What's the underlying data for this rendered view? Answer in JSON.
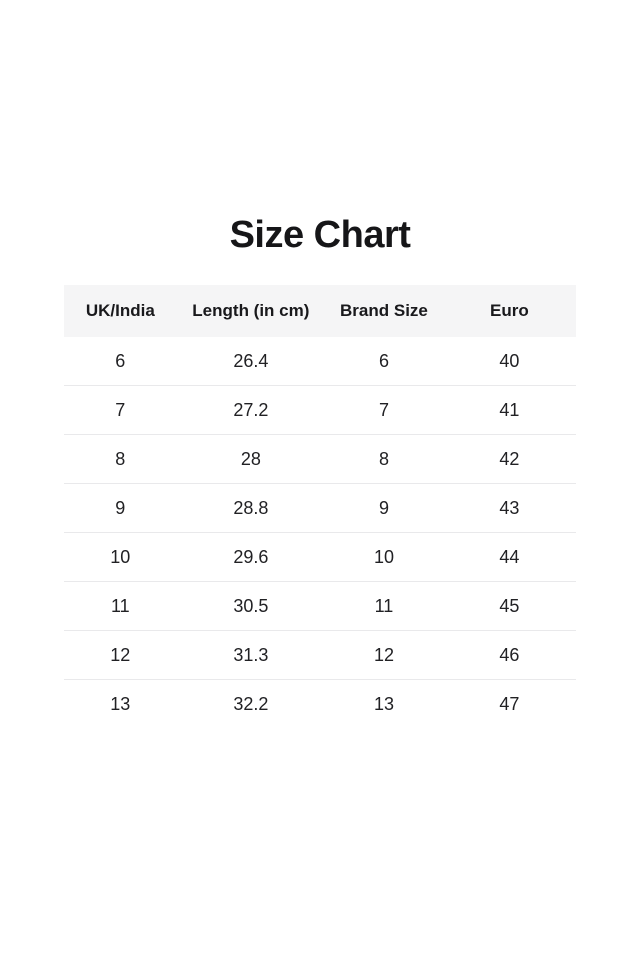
{
  "page": {
    "title": "Size Chart",
    "background": "#ffffff"
  },
  "colors": {
    "header_bg": "#f5f5f6",
    "divider": "#e9e9eb",
    "title_text": "#161618",
    "body_text": "#212124"
  },
  "chart_data": {
    "type": "table",
    "title": "Size Chart",
    "columns": [
      "UK/India",
      "Length (in cm)",
      "Brand Size",
      "Euro"
    ],
    "rows": [
      [
        "6",
        "26.4",
        "6",
        "40"
      ],
      [
        "7",
        "27.2",
        "7",
        "41"
      ],
      [
        "8",
        "28",
        "8",
        "42"
      ],
      [
        "9",
        "28.8",
        "9",
        "43"
      ],
      [
        "10",
        "29.6",
        "10",
        "44"
      ],
      [
        "11",
        "30.5",
        "11",
        "45"
      ],
      [
        "12",
        "31.3",
        "12",
        "46"
      ],
      [
        "13",
        "32.2",
        "13",
        "47"
      ]
    ]
  }
}
